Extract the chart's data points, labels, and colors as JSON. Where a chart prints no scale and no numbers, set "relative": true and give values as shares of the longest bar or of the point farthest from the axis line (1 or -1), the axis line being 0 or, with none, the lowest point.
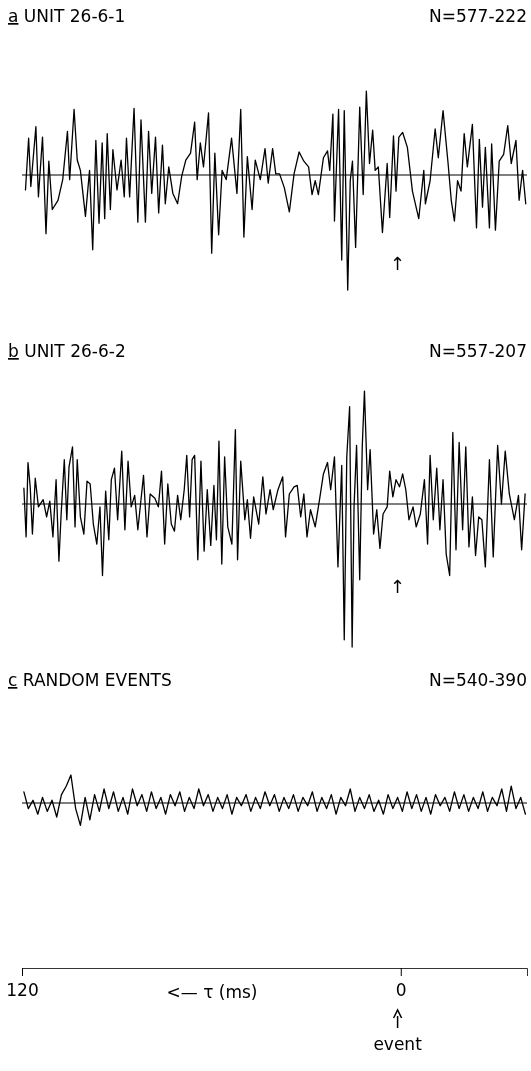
{
  "chart_data": [
    {
      "type": "line",
      "title": "a UNIT 26-6-1",
      "subtitle": "N=577-222",
      "relative": true,
      "xlim": [
        120,
        -40
      ],
      "tick_labels": false,
      "annotations": [
        "↑"
      ],
      "series": [
        {
          "color": "#000000",
          "x": [
            118.9,
            117.9,
            117.2,
            116.5,
            115.6,
            114.8,
            113.5,
            112.4,
            111.5,
            110.4,
            108.6,
            107.1,
            105.6,
            104.9,
            103.5,
            102.5,
            101.5,
            99.9,
            98.6,
            97.6,
            96.6,
            95.6,
            94.6,
            93.8,
            93.0,
            92.0,
            91.2,
            89.9,
            88.6,
            87.6,
            86.9,
            85.9,
            84.5,
            83.3,
            82.3,
            80.9,
            79.9,
            78.9,
            77.7,
            76.7,
            75.5,
            74.6,
            73.5,
            72.2,
            70.7,
            69.4,
            68.1,
            66.6,
            65.3,
            64.5,
            63.5,
            62.5,
            60.9,
            59.9,
            58.9,
            57.7,
            56.6,
            55.3,
            53.6,
            51.9,
            50.7,
            49.7,
            48.6,
            47.1,
            46.1,
            44.5,
            43.0,
            42.0,
            40.6,
            39.6,
            38.4,
            36.9,
            35.3,
            33.8,
            32.2,
            30.7,
            29.2,
            28.1,
            27.1,
            26.1,
            24.5,
            23.2,
            22.5,
            21.5,
            21.0,
            19.7,
            18.7,
            17.9,
            16.8,
            16.0,
            15.3,
            14.3,
            13.0,
            11.9,
            10.9,
            9.9,
            8.9,
            8.1,
            7.1,
            5.8,
            4.3,
            3.5,
            2.3,
            1.5,
            0.6,
            -0.6,
            -2.1,
            -3.7,
            -5.7,
            -7.3,
            -7.8,
            -9.3,
            -10.9,
            -11.9,
            -13.4,
            -15.0,
            -16.0,
            -17.0,
            -18.0,
            -19.1,
            -20.1,
            -21.1,
            -22.7,
            -24.0,
            -24.9,
            -25.9,
            -26.8,
            -28.1,
            -28.8,
            -30.0,
            -31.2,
            -32.6,
            -33.9,
            -35.0,
            -36.5,
            -37.5,
            -38.6,
            -39.6
          ],
          "values": [
            -0.13,
            0.32,
            -0.1,
            0.13,
            0.42,
            -0.19,
            0.33,
            -0.51,
            0.12,
            -0.3,
            -0.22,
            -0.04,
            0.38,
            -0.04,
            0.57,
            0.13,
            0.04,
            -0.36,
            0.04,
            -0.65,
            0.3,
            -0.42,
            0.28,
            -0.38,
            0.36,
            -0.3,
            0.22,
            -0.13,
            0.13,
            -0.19,
            0.32,
            -0.19,
            0.58,
            -0.41,
            0.48,
            -0.41,
            0.38,
            -0.16,
            0.33,
            -0.33,
            0.26,
            -0.25,
            0.07,
            -0.16,
            -0.25,
            -0.01,
            0.13,
            0.19,
            0.46,
            -0.04,
            0.28,
            0.07,
            0.54,
            -0.68,
            0.19,
            -0.52,
            0.04,
            -0.04,
            0.32,
            -0.16,
            0.57,
            -0.54,
            0.16,
            -0.3,
            0.13,
            -0.04,
            0.23,
            -0.07,
            0.23,
            0.01,
            0.01,
            -0.11,
            -0.32,
            0.01,
            0.2,
            0.12,
            0.07,
            -0.17,
            -0.05,
            -0.17,
            0.15,
            0.21,
            0.04,
            0.53,
            -0.4,
            0.57,
            -0.74,
            0.56,
            -1,
            -0.05,
            0.12,
            -0.63,
            0.59,
            -0.17,
            0.73,
            0.1,
            0.39,
            0.04,
            0.07,
            -0.5,
            0.1,
            -0.37,
            0.34,
            -0.14,
            0.33,
            0.37,
            0.24,
            -0.14,
            -0.38,
            0.04,
            -0.25,
            -0.05,
            0.4,
            0.15,
            0.56,
            0.1,
            -0.22,
            -0.4,
            -0.05,
            -0.14,
            0.36,
            0.07,
            0.44,
            -0.46,
            0.31,
            -0.28,
            0.24,
            -0.46,
            0.27,
            -0.48,
            0.12,
            0.18,
            0.43,
            0.1,
            0.3,
            -0.22,
            0.04,
            -0.25
          ]
        }
      ]
    },
    {
      "type": "line",
      "title": "b UNIT 26-6-2",
      "subtitle": "N=557-207",
      "relative": true,
      "xlim": [
        120,
        -40
      ],
      "tick_labels": false,
      "annotations": [
        "↑"
      ],
      "series": [
        {
          "color": "#000000",
          "x": [
            119.4,
            118.7,
            118.1,
            117.4,
            116.7,
            115.8,
            114.8,
            113.3,
            112.2,
            111.2,
            110.2,
            109.2,
            108.3,
            107.6,
            106.6,
            105.8,
            105.1,
            104.0,
            103.2,
            102.5,
            101.5,
            100.4,
            99.4,
            98.4,
            97.4,
            96.3,
            95.3,
            94.5,
            93.5,
            92.5,
            91.7,
            90.7,
            89.7,
            88.4,
            87.4,
            86.4,
            85.4,
            84.3,
            83.3,
            82.3,
            81.5,
            80.4,
            79.4,
            77.9,
            76.8,
            75.8,
            74.8,
            73.8,
            72.7,
            71.7,
            70.7,
            69.7,
            68.6,
            67.8,
            66.9,
            66.1,
            65.3,
            64.3,
            63.3,
            62.3,
            61.3,
            60.2,
            59.2,
            58.4,
            57.6,
            56.7,
            55.8,
            54.8,
            53.5,
            52.4,
            51.7,
            50.7,
            49.4,
            48.6,
            47.6,
            46.6,
            45.0,
            43.7,
            42.7,
            41.4,
            40.4,
            38.9,
            37.4,
            36.5,
            35.3,
            33.8,
            32.8,
            31.7,
            30.7,
            29.7,
            28.6,
            27.1,
            25.6,
            24.5,
            23.2,
            22.2,
            21.0,
            19.9,
            18.7,
            17.9,
            17.1,
            16.2,
            15.4,
            14.8,
            14.0,
            13.0,
            12.2,
            11.5,
            10.5,
            9.7,
            8.6,
            7.6,
            6.6,
            5.6,
            4.3,
            3.5,
            2.5,
            1.5,
            0.4,
            -0.6,
            -1.6,
            -2.6,
            -3.9,
            -4.9,
            -6.2,
            -7.5,
            -8.5,
            -9.3,
            -10.3,
            -11.4,
            -12.4,
            -13.4,
            -14.4,
            -15.5,
            -16.5,
            -17.5,
            -18.5,
            -19.6,
            -20.6,
            -21.6,
            -22.7,
            -23.7,
            -24.7,
            -25.7,
            -26.8,
            -28.1,
            -29.3,
            -30.7,
            -31.9,
            -33.1,
            -34.4,
            -36.0,
            -37.3,
            -38.3,
            -39.4
          ],
          "values": [
            0.11,
            -0.23,
            0.29,
            0.12,
            -0.21,
            0.18,
            -0.02,
            0.03,
            -0.09,
            0.02,
            -0.23,
            0.17,
            -0.4,
            -0.07,
            0.31,
            -0.11,
            0.26,
            0.4,
            -0.16,
            0.31,
            -0.09,
            -0.21,
            0.16,
            0.14,
            -0.14,
            -0.28,
            -0.02,
            -0.5,
            0.09,
            -0.25,
            0.17,
            0.25,
            -0.11,
            0.37,
            -0.18,
            0.3,
            -0.02,
            0.06,
            -0.18,
            0.03,
            0.2,
            -0.23,
            0.07,
            0.04,
            -0.02,
            0.23,
            -0.28,
            0.14,
            -0.14,
            -0.19,
            0.06,
            -0.11,
            0.1,
            0.34,
            -0.09,
            0.31,
            0.34,
            -0.39,
            0.3,
            -0.33,
            0.1,
            -0.29,
            0.13,
            -0.25,
            0.44,
            -0.42,
            0.33,
            -0.16,
            -0.28,
            0.52,
            -0.39,
            0.3,
            -0.11,
            0.03,
            -0.24,
            0.05,
            -0.14,
            0.19,
            -0.07,
            0.1,
            -0.04,
            0.1,
            0.19,
            -0.23,
            0.07,
            0.12,
            0.13,
            -0.09,
            0.07,
            -0.23,
            -0.04,
            -0.16,
            0.05,
            0.21,
            0.29,
            0.1,
            0.33,
            -0.44,
            0.27,
            -0.95,
            0.33,
            0.68,
            -1,
            -0.02,
            0.41,
            -0.53,
            0.4,
            0.79,
            0.1,
            0.38,
            -0.21,
            -0.04,
            -0.31,
            -0.07,
            -0.02,
            0.23,
            0.05,
            0.17,
            0.12,
            0.21,
            0.1,
            -0.11,
            -0.02,
            -0.16,
            -0.07,
            0.17,
            -0.28,
            0.34,
            -0.11,
            0.25,
            -0.18,
            0.17,
            -0.35,
            -0.5,
            0.5,
            -0.32,
            0.43,
            -0.18,
            0.4,
            -0.3,
            0.05,
            -0.36,
            -0.09,
            -0.11,
            -0.44,
            0.31,
            -0.37,
            0.41,
            0.0,
            0.37,
            0.07,
            -0.11,
            0.06,
            -0.32,
            0.07
          ]
        }
      ]
    },
    {
      "type": "line",
      "title": "c RANDOM EVENTS",
      "subtitle": "N=540-390",
      "relative": true,
      "xlim": [
        120,
        -40
      ],
      "xticks": [
        120,
        0
      ],
      "tick_labels": "x",
      "xlabel": "<— τ (ms)",
      "annotations": [
        "event"
      ],
      "series": [
        {
          "color": "#000000",
          "x": [
            119.4,
            118,
            116.5,
            115,
            113.5,
            112,
            110.5,
            109,
            107.5,
            106,
            104.5,
            103,
            101.5,
            100,
            98.5,
            97,
            95.5,
            94,
            92.5,
            91,
            89.5,
            88,
            86.5,
            85,
            83.5,
            82,
            80.5,
            79,
            77.5,
            76,
            74.5,
            73,
            71.5,
            70,
            68.5,
            67,
            65.5,
            64,
            62.5,
            61,
            59.5,
            58,
            56.5,
            55,
            53.5,
            52,
            50.5,
            49,
            47.5,
            46,
            44.5,
            43,
            41.5,
            40,
            38.5,
            37,
            35.5,
            34,
            32.5,
            31,
            29.5,
            28,
            26.5,
            25,
            23.5,
            22,
            20.5,
            19,
            17.5,
            16,
            14.5,
            13,
            11.5,
            10,
            8.5,
            7,
            5.5,
            4,
            2.5,
            1,
            -0.5,
            -2,
            -3.5,
            -5,
            -6.5,
            -8,
            -9.5,
            -11,
            -12.5,
            -14,
            -15.5,
            -17,
            -18.5,
            -20,
            -21.5,
            -23,
            -24.5,
            -26,
            -27.5,
            -29,
            -30.5,
            -32,
            -33.5,
            -35,
            -36.5,
            -38,
            -39.5
          ],
          "values": [
            0.4,
            -0.2,
            0.1,
            -0.4,
            0.2,
            -0.3,
            0.1,
            -0.5,
            0.3,
            0.6,
            1,
            -0.2,
            -0.8,
            0.2,
            -0.6,
            0.3,
            -0.3,
            0.5,
            -0.2,
            0.4,
            -0.3,
            0.2,
            -0.4,
            0.5,
            -0.1,
            0.3,
            -0.3,
            0.4,
            -0.2,
            0.2,
            -0.4,
            0.3,
            -0.1,
            0.4,
            -0.3,
            0.2,
            -0.2,
            0.5,
            -0.1,
            0.3,
            -0.3,
            0.2,
            -0.2,
            0.3,
            -0.4,
            0.2,
            -0.1,
            0.3,
            -0.3,
            0.2,
            -0.2,
            0.4,
            -0.1,
            0.3,
            -0.3,
            0.2,
            -0.2,
            0.3,
            -0.3,
            0.2,
            -0.1,
            0.4,
            -0.3,
            0.2,
            -0.2,
            0.3,
            -0.4,
            0.2,
            -0.1,
            0.5,
            -0.3,
            0.2,
            -0.2,
            0.3,
            -0.3,
            0.1,
            -0.4,
            0.3,
            -0.2,
            0.2,
            -0.3,
            0.4,
            -0.2,
            0.3,
            -0.3,
            0.2,
            -0.4,
            0.3,
            -0.1,
            0.2,
            -0.3,
            0.4,
            -0.2,
            0.3,
            -0.3,
            0.2,
            -0.2,
            0.4,
            -0.3,
            0.2,
            -0.1,
            0.5,
            -0.3,
            0.6,
            -0.2,
            0.2,
            -0.4
          ]
        }
      ]
    }
  ]
}
